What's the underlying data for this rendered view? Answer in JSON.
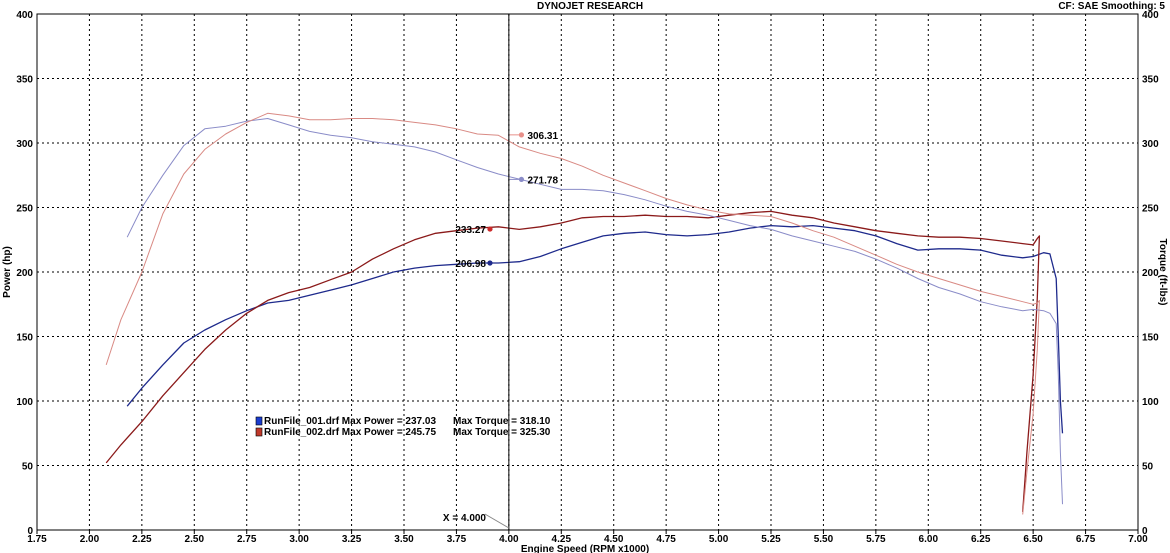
{
  "header": {
    "title": "DYNOJET RESEARCH",
    "settings": "CF: SAE  Smoothing: 5"
  },
  "chart_data": {
    "type": "line",
    "xlabel": "Engine Speed (RPM x1000)",
    "ylabel_left": "Power (hp)",
    "ylabel_right": "Torque (ft-lbs)",
    "xlim": [
      1.75,
      7.0
    ],
    "ylim": [
      0,
      400
    ],
    "x_ticks": [
      "1.75",
      "2.00",
      "2.25",
      "2.50",
      "2.75",
      "3.00",
      "3.25",
      "3.50",
      "3.75",
      "4.00",
      "4.25",
      "4.50",
      "4.75",
      "5.00",
      "5.25",
      "5.50",
      "5.75",
      "6.00",
      "6.25",
      "6.50",
      "6.75",
      "7.00"
    ],
    "y_ticks": [
      "0",
      "50",
      "100",
      "150",
      "200",
      "250",
      "300",
      "350",
      "400"
    ],
    "grid": true,
    "cursor": {
      "x": 4.0,
      "label": "X = 4.000"
    },
    "colors": {
      "run1_power": "#1e2a8c",
      "run2_power": "#8b1a1a",
      "run1_torque": "#8a8cc8",
      "run2_torque": "#d98a84"
    },
    "series": [
      {
        "name": "RunFile_001.drf",
        "measure": "power",
        "color": "#1e2a8c",
        "x": [
          2.18,
          2.25,
          2.35,
          2.45,
          2.55,
          2.65,
          2.75,
          2.85,
          2.95,
          3.05,
          3.15,
          3.25,
          3.35,
          3.45,
          3.55,
          3.65,
          3.75,
          3.85,
          3.95,
          4.05,
          4.15,
          4.25,
          4.35,
          4.45,
          4.55,
          4.65,
          4.75,
          4.85,
          4.95,
          5.05,
          5.15,
          5.25,
          5.35,
          5.45,
          5.55,
          5.65,
          5.75,
          5.85,
          5.95,
          6.05,
          6.15,
          6.25,
          6.35,
          6.45,
          6.5,
          6.55,
          6.58,
          6.61,
          6.62,
          6.63,
          6.64
        ],
        "y": [
          96,
          110,
          128,
          145,
          155,
          163,
          170,
          176,
          178,
          182,
          186,
          190,
          195,
          200,
          203,
          205,
          206,
          207,
          207,
          208,
          212,
          218,
          223,
          228,
          230,
          231,
          229,
          228,
          229,
          231,
          234,
          236,
          235,
          236,
          234,
          232,
          228,
          222,
          217,
          218,
          218,
          217,
          213,
          211,
          212,
          215,
          214,
          195,
          150,
          100,
          75
        ]
      },
      {
        "name": "RunFile_002.drf",
        "measure": "power",
        "color": "#8b1a1a",
        "x": [
          2.08,
          2.15,
          2.25,
          2.35,
          2.45,
          2.55,
          2.65,
          2.75,
          2.85,
          2.95,
          3.05,
          3.15,
          3.25,
          3.35,
          3.45,
          3.55,
          3.65,
          3.75,
          3.85,
          3.95,
          4.05,
          4.15,
          4.25,
          4.35,
          4.45,
          4.55,
          4.65,
          4.75,
          4.85,
          4.95,
          5.05,
          5.15,
          5.25,
          5.35,
          5.45,
          5.55,
          5.65,
          5.75,
          5.85,
          5.95,
          6.05,
          6.15,
          6.25,
          6.35,
          6.45,
          6.5,
          6.52,
          6.53,
          6.52,
          6.5,
          6.47,
          6.45
        ],
        "y": [
          52,
          66,
          84,
          104,
          122,
          140,
          155,
          168,
          178,
          184,
          188,
          194,
          200,
          210,
          218,
          225,
          230,
          232,
          234,
          235,
          233,
          235,
          238,
          242,
          243,
          243,
          244,
          243,
          243,
          242,
          244,
          246,
          247,
          244,
          242,
          238,
          235,
          232,
          230,
          228,
          227,
          227,
          226,
          224,
          222,
          221,
          226,
          228,
          180,
          120,
          60,
          14
        ]
      },
      {
        "name": "RunFile_001.drf",
        "measure": "torque",
        "color": "#8a8cc8",
        "x": [
          2.18,
          2.25,
          2.35,
          2.45,
          2.55,
          2.65,
          2.75,
          2.85,
          2.95,
          3.05,
          3.15,
          3.25,
          3.35,
          3.45,
          3.55,
          3.65,
          3.75,
          3.85,
          3.95,
          4.05,
          4.15,
          4.25,
          4.35,
          4.45,
          4.55,
          4.65,
          4.75,
          4.85,
          4.95,
          5.05,
          5.15,
          5.25,
          5.35,
          5.45,
          5.55,
          5.65,
          5.75,
          5.85,
          5.95,
          6.05,
          6.15,
          6.25,
          6.35,
          6.45,
          6.5,
          6.55,
          6.58,
          6.61,
          6.62,
          6.63,
          6.64
        ],
        "y": [
          227,
          250,
          275,
          298,
          311,
          313,
          317,
          319,
          314,
          309,
          306,
          304,
          301,
          299,
          297,
          293,
          287,
          281,
          276,
          272,
          268,
          264,
          264,
          263,
          260,
          256,
          251,
          247,
          244,
          240,
          236,
          233,
          228,
          224,
          220,
          216,
          210,
          203,
          195,
          188,
          183,
          177,
          173,
          170,
          171,
          170,
          168,
          160,
          120,
          60,
          20
        ]
      },
      {
        "name": "RunFile_002.drf",
        "measure": "torque",
        "color": "#d98a84",
        "x": [
          2.08,
          2.15,
          2.25,
          2.35,
          2.45,
          2.55,
          2.65,
          2.75,
          2.85,
          2.95,
          3.05,
          3.15,
          3.25,
          3.35,
          3.45,
          3.55,
          3.65,
          3.75,
          3.85,
          3.95,
          4.05,
          4.15,
          4.25,
          4.35,
          4.45,
          4.55,
          4.65,
          4.75,
          4.85,
          4.95,
          5.05,
          5.15,
          5.25,
          5.35,
          5.45,
          5.55,
          5.65,
          5.75,
          5.85,
          5.95,
          6.05,
          6.15,
          6.25,
          6.35,
          6.45,
          6.5,
          6.52,
          6.53,
          6.52,
          6.5,
          6.47,
          6.45
        ],
        "y": [
          128,
          163,
          200,
          245,
          276,
          295,
          307,
          316,
          323,
          321,
          318,
          318,
          319,
          319,
          318,
          316,
          314,
          311,
          307,
          306,
          297,
          292,
          288,
          282,
          275,
          269,
          263,
          257,
          252,
          248,
          245,
          244,
          243,
          238,
          232,
          227,
          220,
          213,
          206,
          200,
          195,
          190,
          185,
          181,
          177,
          175,
          176,
          178,
          140,
          90,
          45,
          12
        ]
      }
    ],
    "markers": [
      {
        "x": 3.91,
        "y": 206.98,
        "label": "206.98",
        "color": "#1e2a8c",
        "side": "left"
      },
      {
        "x": 3.91,
        "y": 233.27,
        "label": "233.27",
        "color": "#cc2a2a",
        "side": "left"
      },
      {
        "x": 4.06,
        "y": 271.78,
        "label": "271.78",
        "color": "#8a8cc8",
        "side": "right"
      },
      {
        "x": 4.06,
        "y": 306.31,
        "label": "306.31",
        "color": "#e8908a",
        "side": "right"
      }
    ],
    "legend": {
      "position": "bottom-left",
      "entries": [
        {
          "file": "RunFile_001.drf",
          "text": "RunFile_001.drf Max Power = 237.03",
          "torque_text": "Max Torque = 318.10",
          "color": "#1a3ccf"
        },
        {
          "file": "RunFile_002.drf",
          "text": "RunFile_002.drf Max Power = 245.75",
          "torque_text": "Max Torque = 325.30",
          "color": "#c0392b"
        }
      ]
    }
  }
}
